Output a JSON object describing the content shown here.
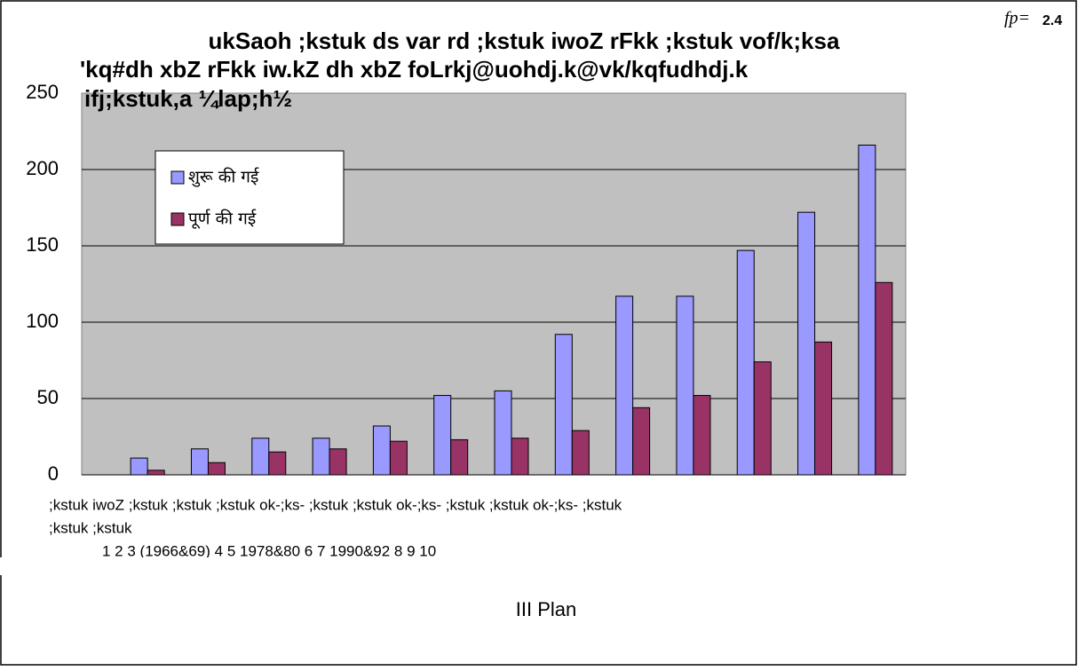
{
  "chart_data": {
    "type": "bar",
    "figure_label": "fp=",
    "figure_number": "2.4",
    "title_lines": [
      "ukSaoh ;kstuk ds var rd ;kstuk iwoZ rFkk ;kstuk vof/k;ksa",
      "'kq#dh xbZ rFkk iw.kZ dh xbZ foLrkj@uohdj.k@vk/kqfudhdj.k",
      "ifj;kstuk,a ¼lap;h½"
    ],
    "x_label_lines": [
      ";kstuk iwoZ ;kstuk  ;kstuk ;kstuk  ok-;ks-  ;kstuk ;kstuk  ok-;ks- ;kstuk  ;kstuk  ok-;ks- ;kstuk",
      ";kstuk ;kstuk",
      "1     2      3 (1966&69)  4    5   1978&80   6      7    1990&92   8      9    10"
    ],
    "x_label": "III    Plan",
    "series": [
      {
        "name": "शुरू की गई",
        "color": "#9999ff",
        "values": [
          11,
          17,
          24,
          24,
          32,
          52,
          55,
          92,
          117,
          117,
          147,
          172,
          216
        ]
      },
      {
        "name": "पूर्ण की गई",
        "color": "#993366",
        "values": [
          3,
          8,
          15,
          17,
          22,
          23,
          24,
          29,
          44,
          52,
          74,
          87,
          126
        ]
      }
    ],
    "ylim": [
      0,
      250
    ],
    "yticks": [
      0,
      50,
      100,
      150,
      200,
      250
    ],
    "grid": true
  }
}
